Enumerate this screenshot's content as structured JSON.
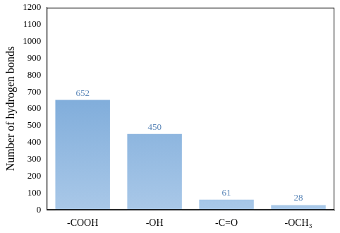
{
  "chart_data": {
    "type": "bar",
    "y_label": "Number of hydrogen bonds",
    "categories": [
      "-COOH",
      "-OH",
      "-C=O",
      "-OCH₃"
    ],
    "values": [
      652,
      450,
      61,
      28
    ],
    "color": "#5f97d0",
    "ylim": [
      0,
      1200
    ],
    "yticks": [
      0,
      100,
      200,
      300,
      400,
      500,
      600,
      700,
      800,
      900,
      1000,
      1100,
      1200
    ],
    "grid": false,
    "data_labels": true
  }
}
